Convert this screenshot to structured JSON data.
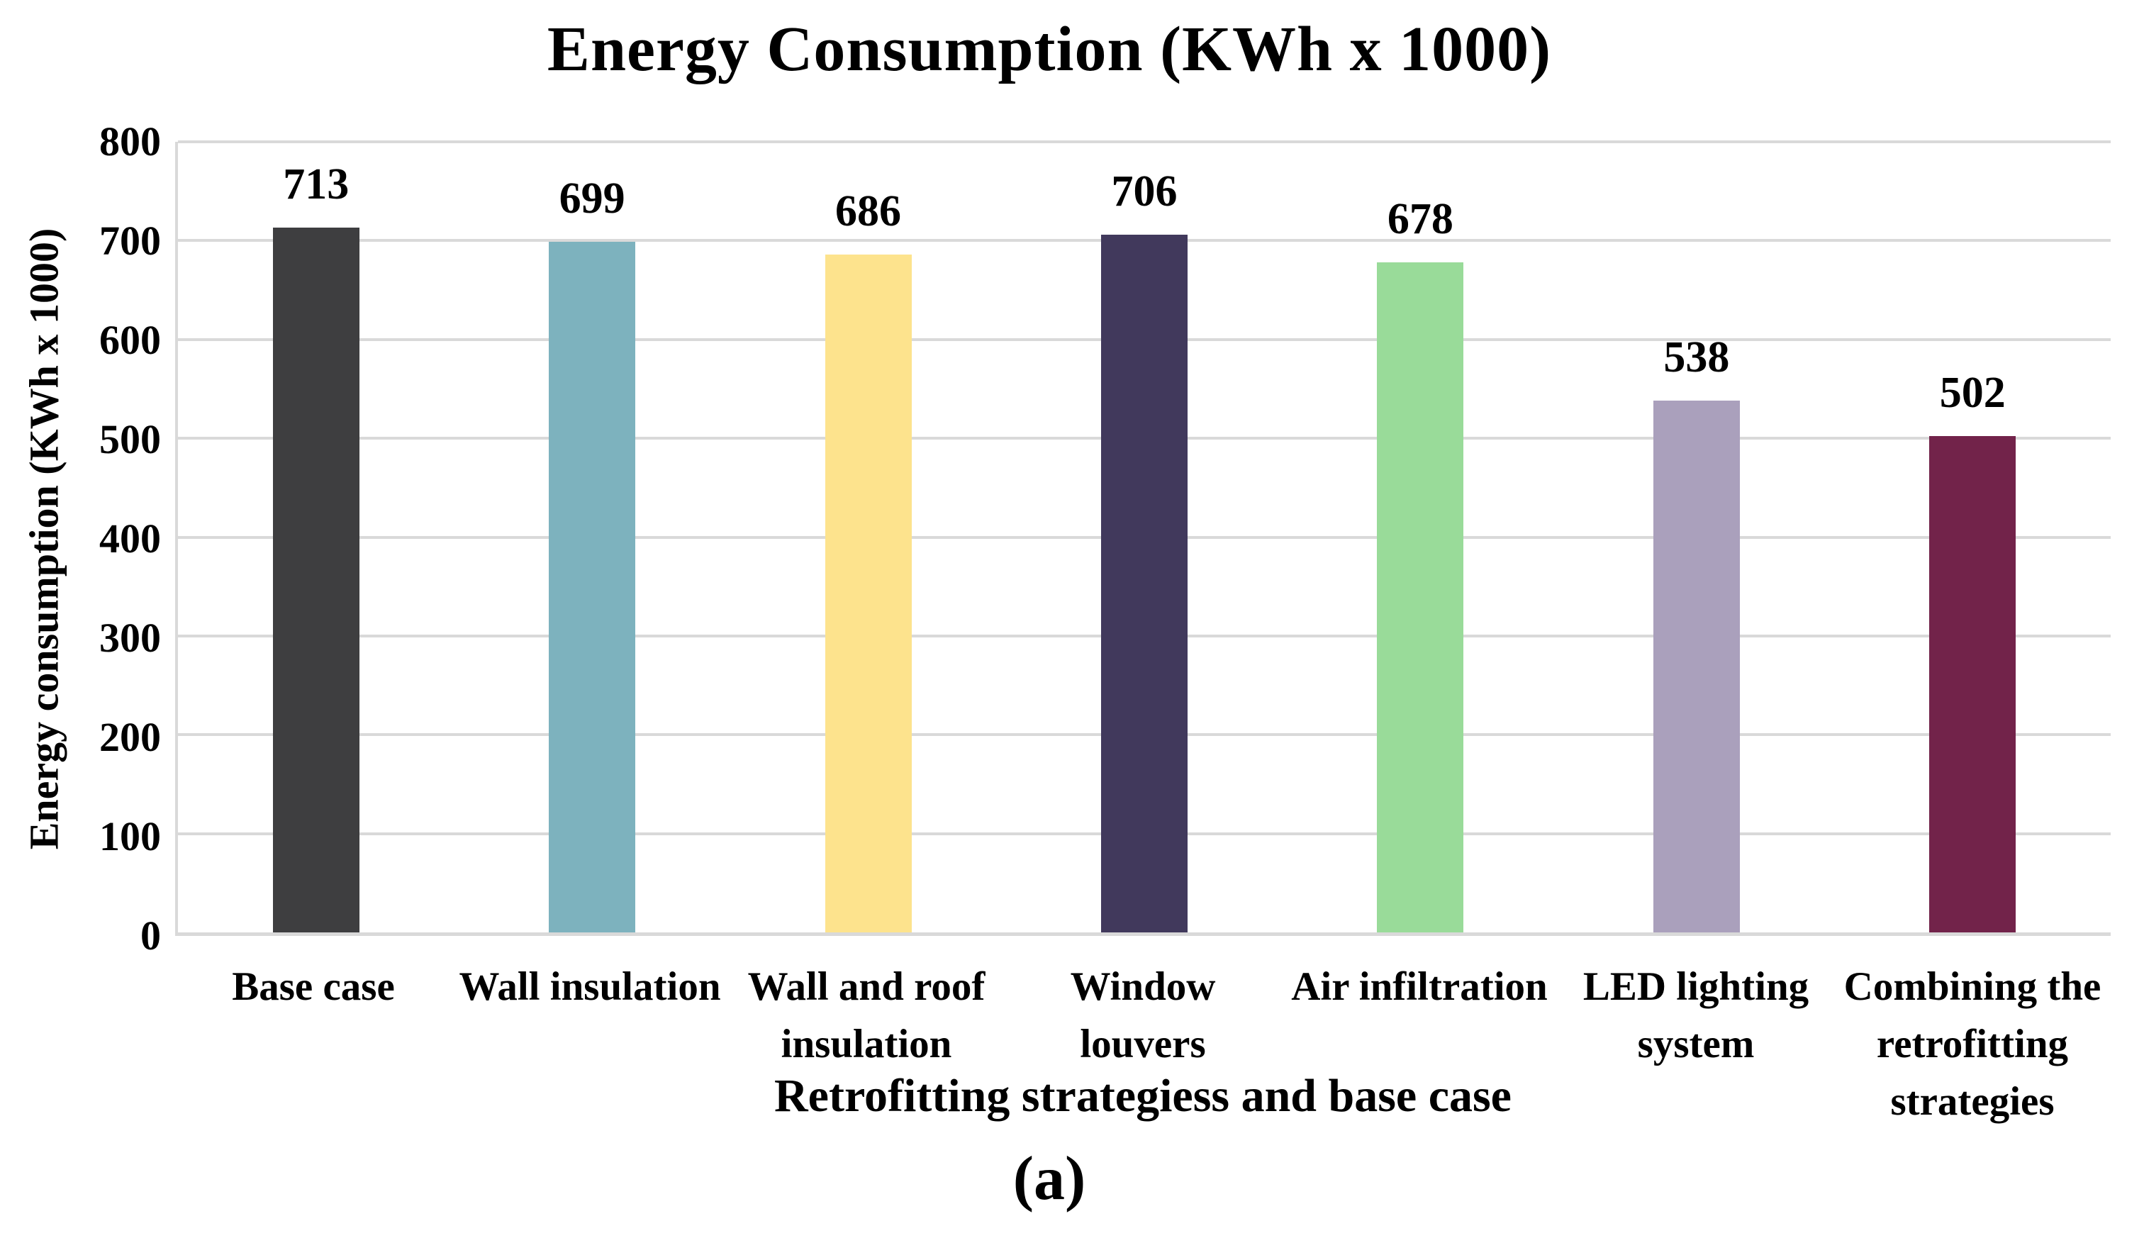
{
  "figure": {
    "caption": "(a)"
  },
  "chart_data": {
    "type": "bar",
    "title": "Energy Consumption (KWh x 1000)",
    "xlabel": "Retrofitting strategiess and base case",
    "ylabel": "Energy consumption (KWh x 1000)",
    "categories": [
      "Base case",
      "Wall insulation",
      "Wall and roof insulation",
      "Window louvers",
      "Air infiltration",
      "LED lighting system",
      "Combining the retrofitting strategies"
    ],
    "xtick_lines": [
      [
        "Base case"
      ],
      [
        "Wall insulation"
      ],
      [
        "Wall and roof",
        "insulation"
      ],
      [
        "Window",
        "louvers"
      ],
      [
        "Air infiltration"
      ],
      [
        "LED lighting",
        "system"
      ],
      [
        "Combining the",
        "retrofitting",
        "strategies"
      ]
    ],
    "values": [
      713,
      699,
      686,
      706,
      678,
      538,
      502
    ],
    "data_labels": [
      "713",
      "699",
      "686",
      "706",
      "678",
      "538",
      "502"
    ],
    "bar_colors": [
      "#3E3E40",
      "#7DB2BE",
      "#FDE38D",
      "#41395C",
      "#99DB99",
      "#AAA0BC",
      "#72234A"
    ],
    "ylim": [
      0,
      800
    ],
    "yticks": [
      0,
      100,
      200,
      300,
      400,
      500,
      600,
      700,
      800
    ],
    "grid": "horizontal",
    "gridline_color": "#D9D9D9",
    "legend": "none",
    "bar_value_color": "#000000",
    "text_color": "#000000"
  }
}
